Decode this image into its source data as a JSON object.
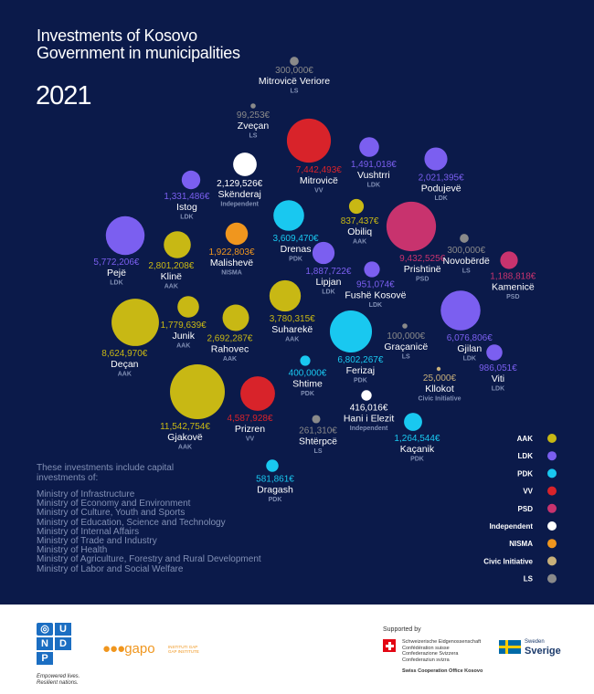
{
  "title": "Investments of Kosovo Government in municipalities",
  "year": "2021",
  "note_intro": "These investments include capital investments of:",
  "ministry_prefix": "Ministry of",
  "ministries": [
    "Infrastructure",
    "Economy and Environment",
    "Culture, Youth and Sports",
    "Education, Science and Technology",
    "Internal Affairs",
    "Trade and Industry",
    "Health",
    "Agriculture, Forestry and Rural Development",
    "Labor and Social Welfare"
  ],
  "footer": {
    "undp_letters": [
      "U",
      "N",
      "D",
      "P"
    ],
    "undp_tagline": "Empowered lives. Resilient nations.",
    "gap_name": "gapo",
    "gap_sub": "INSTITUTI GAP GAP INSTITUTE",
    "supported_by": "Supported by",
    "swiss_lines": [
      "Schweizerische Eidgenossenschaft",
      "Confédération suisse",
      "Confederazione Svizzera",
      "Confederaziun svizra"
    ],
    "swiss_office": "Swiss Cooperation Office Kosovo",
    "sweden_small": "Sweden",
    "sweden_big": "Sverige"
  },
  "chart_data": {
    "type": "bubble",
    "parties": [
      {
        "name": "AAK",
        "color": "#c8b814"
      },
      {
        "name": "LDK",
        "color": "#7b5ff0"
      },
      {
        "name": "PDK",
        "color": "#19c8f0"
      },
      {
        "name": "VV",
        "color": "#d8232a"
      },
      {
        "name": "PSD",
        "color": "#c8336e"
      },
      {
        "name": "Independent",
        "color": "#ffffff"
      },
      {
        "name": "NISMA",
        "color": "#f0961e"
      },
      {
        "name": "Civic Initiative",
        "color": "#c8b07a"
      },
      {
        "name": "LS",
        "color": "#8a8a8a"
      }
    ],
    "points": [
      {
        "name": "Mitrovicë Veriore",
        "value": 300000,
        "value_label": "300,000€",
        "party": "LS",
        "color": "#8a8a8a"
      },
      {
        "name": "Zveçan",
        "value": 99253,
        "value_label": "99,253€",
        "party": "LS",
        "color": "#8a8a8a"
      },
      {
        "name": "Mitrovicë",
        "value": 7442493,
        "value_label": "7,442,493€",
        "party": "VV",
        "color": "#d8232a"
      },
      {
        "name": "Vushtrri",
        "value": 1491018,
        "value_label": "1,491,018€",
        "party": "LDK",
        "color": "#7b5ff0"
      },
      {
        "name": "Podujevë",
        "value": 2021395,
        "value_label": "2,021,395€",
        "party": "LDK",
        "color": "#7b5ff0"
      },
      {
        "name": "Skënderaj",
        "value": 2129526,
        "value_label": "2,129,526€",
        "party": "Independent",
        "color": "#ffffff"
      },
      {
        "name": "Istog",
        "value": 1331486,
        "value_label": "1,331,486€",
        "party": "LDK",
        "color": "#7b5ff0"
      },
      {
        "name": "Drenas",
        "value": 3609470,
        "value_label": "3,609,470€",
        "party": "PDK",
        "color": "#19c8f0"
      },
      {
        "name": "Obiliq",
        "value": 837437,
        "value_label": "837,437€",
        "party": "AAK",
        "color": "#c8b814"
      },
      {
        "name": "Prishtinë",
        "value": 9432525,
        "value_label": "9,432,525€",
        "party": "PSD",
        "color": "#c8336e"
      },
      {
        "name": "Novobërdë",
        "value": 300000,
        "value_label": "300,000€",
        "party": "LS",
        "color": "#8a8a8a"
      },
      {
        "name": "Pejë",
        "value": 5772206,
        "value_label": "5,772,206€",
        "party": "LDK",
        "color": "#7b5ff0"
      },
      {
        "name": "Klinë",
        "value": 2801208,
        "value_label": "2,801,208€",
        "party": "AAK",
        "color": "#c8b814"
      },
      {
        "name": "Malishevë",
        "value": 1922803,
        "value_label": "1,922,803€",
        "party": "NISMA",
        "color": "#f0961e"
      },
      {
        "name": "Lipjan",
        "value": 1887722,
        "value_label": "1,887,722€",
        "party": "LDK",
        "color": "#7b5ff0"
      },
      {
        "name": "Fushë Kosovë",
        "value": 951074,
        "value_label": "951,074€",
        "party": "LDK",
        "color": "#7b5ff0"
      },
      {
        "name": "Kamenicë",
        "value": 1188818,
        "value_label": "1,188,818€",
        "party": "PSD",
        "color": "#c8336e"
      },
      {
        "name": "Junik",
        "value": 1779639,
        "value_label": "1,779,639€",
        "party": "AAK",
        "color": "#c8b814"
      },
      {
        "name": "Suharekë",
        "value": 3780315,
        "value_label": "3,780,315€",
        "party": "AAK",
        "color": "#c8b814"
      },
      {
        "name": "Deçan",
        "value": 8624970,
        "value_label": "8,624,970€",
        "party": "AAK",
        "color": "#c8b814"
      },
      {
        "name": "Rahovec",
        "value": 2692287,
        "value_label": "2,692,287€",
        "party": "AAK",
        "color": "#c8b814"
      },
      {
        "name": "Ferizaj",
        "value": 6802267,
        "value_label": "6,802,267€",
        "party": "PDK",
        "color": "#19c8f0"
      },
      {
        "name": "Graçanicë",
        "value": 100000,
        "value_label": "100,000€",
        "party": "LS",
        "color": "#8a8a8a"
      },
      {
        "name": "Gjilan",
        "value": 6076806,
        "value_label": "6,076,806€",
        "party": "LDK",
        "color": "#7b5ff0"
      },
      {
        "name": "Shtime",
        "value": 400000,
        "value_label": "400,000€",
        "party": "PDK",
        "color": "#19c8f0"
      },
      {
        "name": "Viti",
        "value": 986051,
        "value_label": "986,051€",
        "party": "LDK",
        "color": "#7b5ff0"
      },
      {
        "name": "Kllokot",
        "value": 25000,
        "value_label": "25,000€",
        "party": "Civic Initiative",
        "color": "#c8b07a"
      },
      {
        "name": "Gjakovë",
        "value": 11542754,
        "value_label": "11,542,754€",
        "party": "AAK",
        "color": "#c8b814"
      },
      {
        "name": "Prizren",
        "value": 4587928,
        "value_label": "4,587,928€",
        "party": "VV",
        "color": "#d8232a"
      },
      {
        "name": "Hani i Elezit",
        "value": 416016,
        "value_label": "416,016€",
        "party": "Independent",
        "color": "#ffffff"
      },
      {
        "name": "Shtërpcë",
        "value": 261310,
        "value_label": "261,310€",
        "party": "LS",
        "color": "#8a8a8a"
      },
      {
        "name": "Kaçanik",
        "value": 1264544,
        "value_label": "1,264,544€",
        "party": "PDK",
        "color": "#19c8f0"
      },
      {
        "name": "Dragash",
        "value": 581861,
        "value_label": "581,861€",
        "party": "PDK",
        "color": "#19c8f0"
      }
    ]
  }
}
